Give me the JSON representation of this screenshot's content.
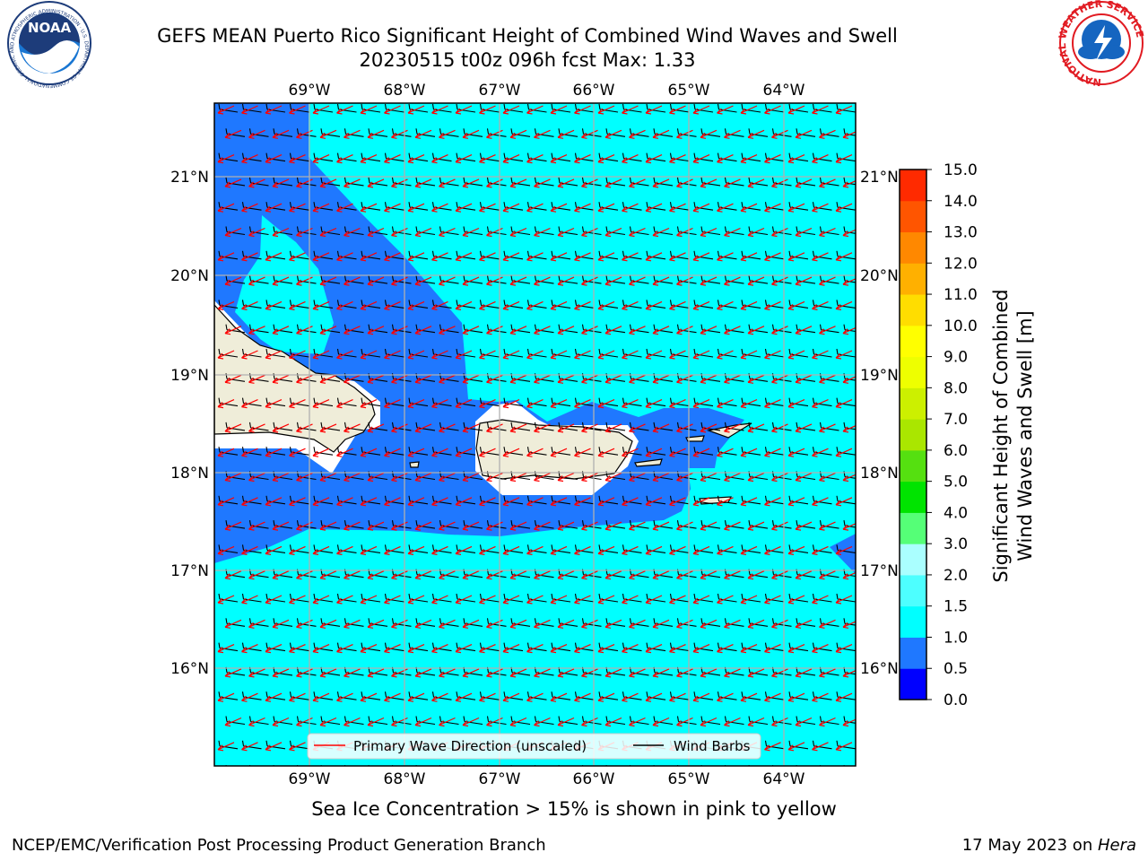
{
  "header": {
    "title_line1": "GEFS MEAN Puerto Rico Significant Height of Combined Wind Waves and Swell",
    "title_line2": "20230515 t00z 096h fcst   Max: 1.33"
  },
  "logos": {
    "left": {
      "name": "NOAA",
      "ring_text": "NATIONAL OCEANIC AND ATMOSPHERIC ADMINISTRATION · U.S. DEPARTMENT OF COMMERCE",
      "colors": {
        "navy": "#1d3c7a",
        "blue": "#1976d2",
        "white": "#ffffff"
      }
    },
    "right": {
      "name": "NATIONAL WEATHER SERVICE",
      "colors": {
        "red": "#e11b22",
        "blue": "#1565c0"
      }
    }
  },
  "map": {
    "lon_range": [
      -70,
      -63.25
    ],
    "lat_range": [
      15.0,
      21.75
    ],
    "lon_ticks": [
      "69°W",
      "68°W",
      "67°W",
      "66°W",
      "65°W",
      "64°W"
    ],
    "lat_ticks": [
      "21°N",
      "20°N",
      "19°N",
      "18°N",
      "17°N",
      "16°N"
    ],
    "grid": true,
    "colors": {
      "deep_blue": "#1f78ff",
      "cyan": "#00ffff",
      "land": "#efedd9",
      "white_band": "#ffffff",
      "wave_arrow": "#ff0000",
      "wind_barb": "#000000"
    }
  },
  "legend": {
    "items": [
      {
        "label": "Primary Wave Direction (unscaled)",
        "color": "#ff0000"
      },
      {
        "label": "Wind Barbs",
        "color": "#000000"
      }
    ],
    "placement": "bottom-center"
  },
  "colorbar": {
    "label_line1": "Significant Height of Combined",
    "label_line2": "Wind Waves and Swell [m]",
    "ticks": [
      "0.0",
      "0.5",
      "1.0",
      "1.5",
      "2.0",
      "3.0",
      "4.0",
      "5.0",
      "6.0",
      "7.0",
      "8.0",
      "9.0",
      "10.0",
      "11.0",
      "12.0",
      "13.0",
      "14.0",
      "15.0"
    ],
    "colors": [
      "#0000ff",
      "#1f78ff",
      "#00ffff",
      "#4dffff",
      "#aaffff",
      "#55ff77",
      "#00e400",
      "#55e010",
      "#aae600",
      "#ccf000",
      "#eeff00",
      "#ffff00",
      "#ffdd00",
      "#ffb000",
      "#ff8800",
      "#ff5500",
      "#ff2a00",
      "#ff0000"
    ]
  },
  "caption": "Sea Ice Concentration > 15% is shown in pink to yellow",
  "footer": {
    "left": "NCEP/EMC/Verification Post Processing Product Generation Branch",
    "right_prefix": "17 May 2023 on ",
    "right_machine": "Hera"
  }
}
